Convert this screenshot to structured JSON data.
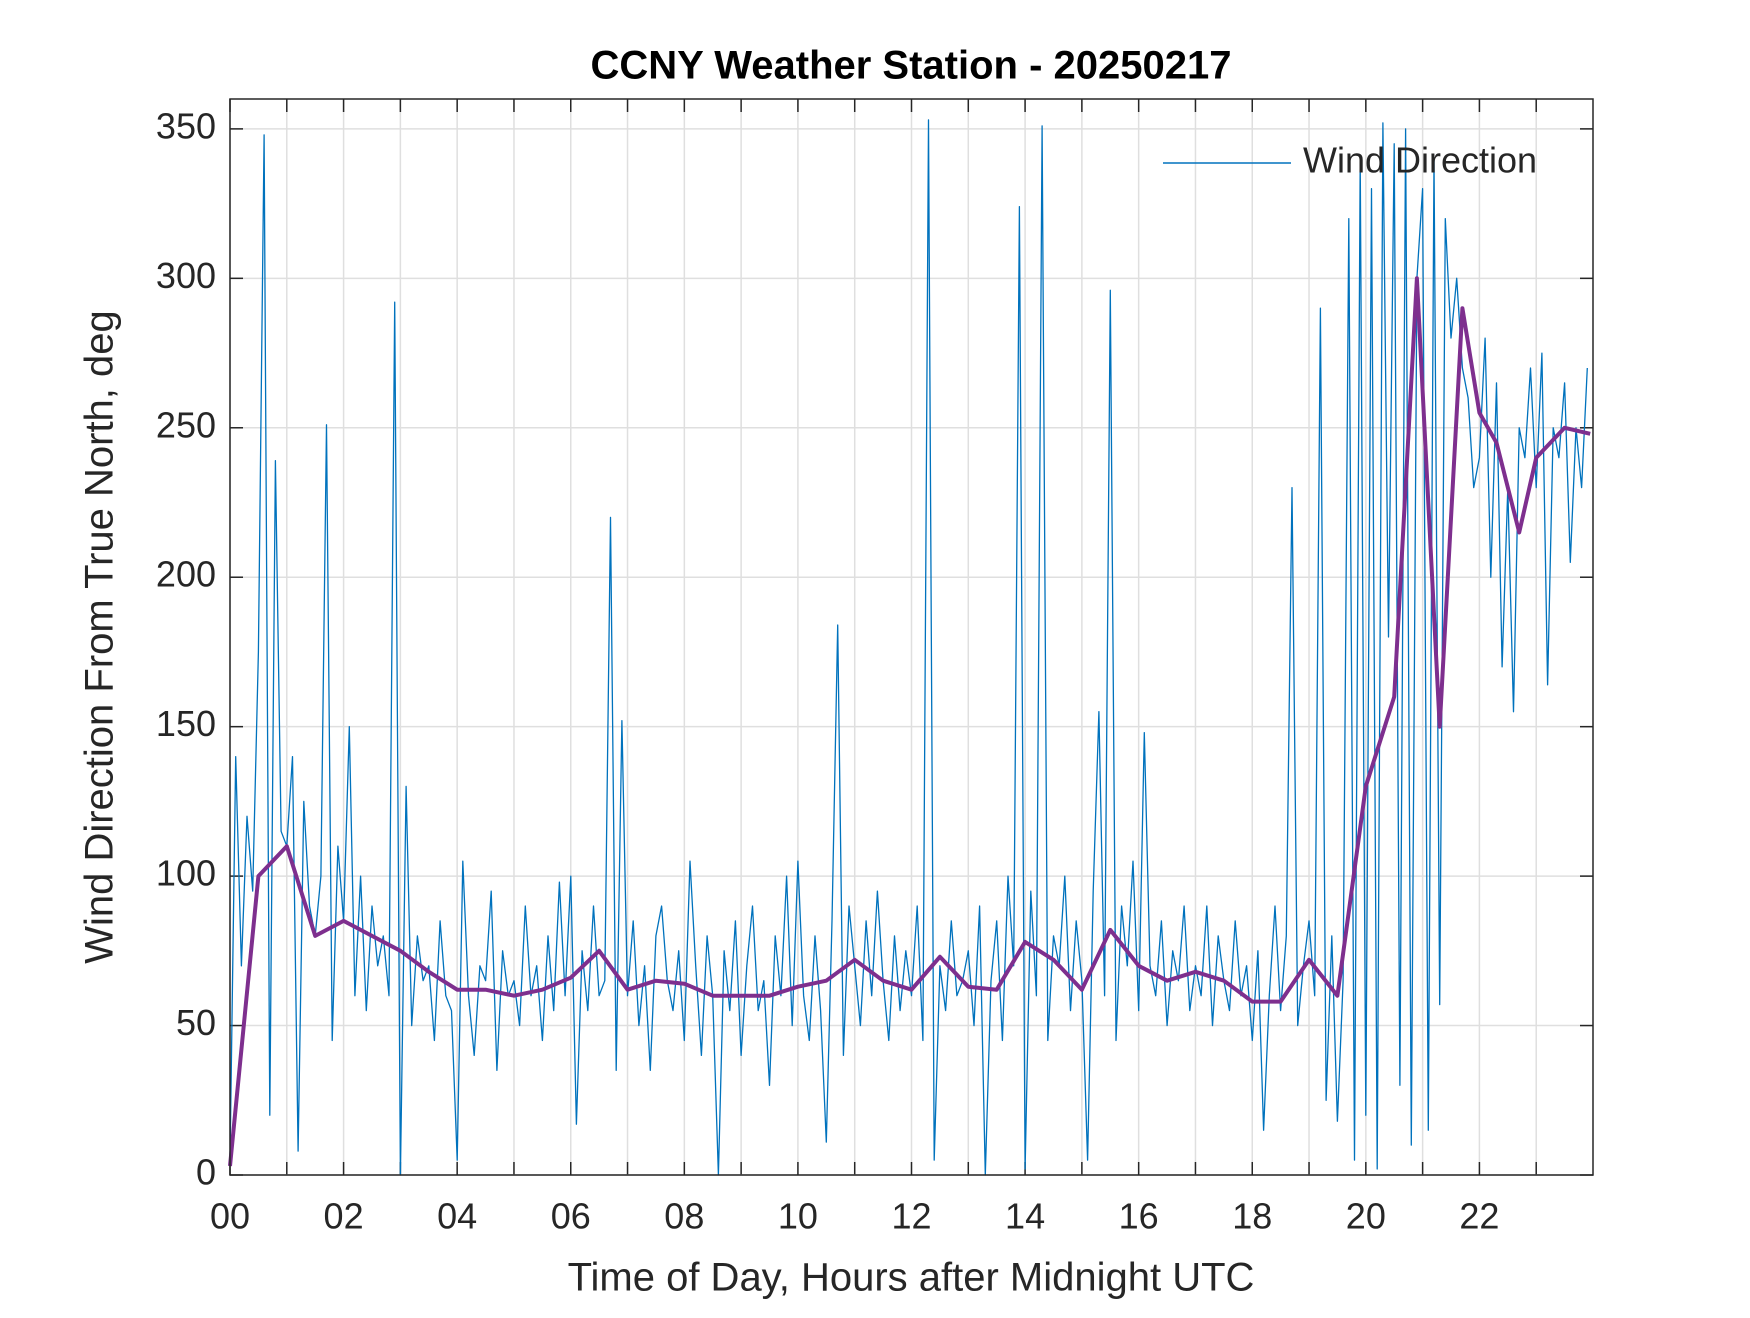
{
  "chart_data": {
    "type": "line",
    "title": "CCNY Weather Station - 20250217",
    "x_label": "Time of Day, Hours after Midnight UTC",
    "y_label": "Wind Direction From True North, deg",
    "xlim": [
      0,
      24
    ],
    "ylim": [
      0,
      360
    ],
    "xticks": [
      {
        "value": 0,
        "label": "00"
      },
      {
        "value": 2,
        "label": "02"
      },
      {
        "value": 4,
        "label": "04"
      },
      {
        "value": 6,
        "label": "06"
      },
      {
        "value": 8,
        "label": "08"
      },
      {
        "value": 10,
        "label": "10"
      },
      {
        "value": 12,
        "label": "12"
      },
      {
        "value": 14,
        "label": "14"
      },
      {
        "value": 16,
        "label": "16"
      },
      {
        "value": 18,
        "label": "18"
      },
      {
        "value": 20,
        "label": "20"
      },
      {
        "value": 22,
        "label": "22"
      }
    ],
    "xminorticks": [
      1,
      3,
      5,
      7,
      9,
      11,
      13,
      15,
      17,
      19,
      21,
      23
    ],
    "yticks": [
      0,
      50,
      100,
      150,
      200,
      250,
      300,
      350
    ],
    "grid": true,
    "legend": "upper right",
    "series": [
      {
        "name": "Wind Direction",
        "color": "#0072BD",
        "width": 1.3,
        "x": [
          0,
          0.1,
          0.2,
          0.3,
          0.4,
          0.5,
          0.6,
          0.7,
          0.8,
          0.9,
          1,
          1.1,
          1.2,
          1.3,
          1.4,
          1.5,
          1.6,
          1.7,
          1.8,
          1.9,
          2,
          2.1,
          2.2,
          2.3,
          2.4,
          2.5,
          2.6,
          2.7,
          2.8,
          2.9,
          3,
          3.1,
          3.2,
          3.3,
          3.4,
          3.5,
          3.6,
          3.7,
          3.8,
          3.9,
          4,
          4.1,
          4.2,
          4.3,
          4.4,
          4.5,
          4.6,
          4.7,
          4.8,
          4.9,
          5,
          5.1,
          5.2,
          5.3,
          5.4,
          5.5,
          5.6,
          5.7,
          5.8,
          5.9,
          6,
          6.1,
          6.2,
          6.3,
          6.4,
          6.5,
          6.6,
          6.7,
          6.8,
          6.9,
          7,
          7.1,
          7.2,
          7.3,
          7.4,
          7.5,
          7.6,
          7.7,
          7.8,
          7.9,
          8,
          8.1,
          8.2,
          8.3,
          8.4,
          8.5,
          8.6,
          8.7,
          8.8,
          8.9,
          9,
          9.1,
          9.2,
          9.3,
          9.4,
          9.5,
          9.6,
          9.7,
          9.8,
          9.9,
          10,
          10.1,
          10.2,
          10.3,
          10.4,
          10.5,
          10.6,
          10.7,
          10.8,
          10.9,
          11,
          11.1,
          11.2,
          11.3,
          11.4,
          11.5,
          11.6,
          11.7,
          11.8,
          11.9,
          12,
          12.1,
          12.2,
          12.3,
          12.4,
          12.5,
          12.6,
          12.7,
          12.8,
          12.9,
          13,
          13.1,
          13.2,
          13.3,
          13.4,
          13.5,
          13.6,
          13.7,
          13.8,
          13.9,
          14,
          14.1,
          14.2,
          14.3,
          14.4,
          14.5,
          14.6,
          14.7,
          14.8,
          14.9,
          15,
          15.1,
          15.2,
          15.3,
          15.4,
          15.5,
          15.6,
          15.7,
          15.8,
          15.9,
          16,
          16.1,
          16.2,
          16.3,
          16.4,
          16.5,
          16.6,
          16.7,
          16.8,
          16.9,
          17,
          17.1,
          17.2,
          17.3,
          17.4,
          17.5,
          17.6,
          17.7,
          17.8,
          17.9,
          18,
          18.1,
          18.2,
          18.3,
          18.4,
          18.5,
          18.6,
          18.7,
          18.8,
          18.9,
          19,
          19.1,
          19.2,
          19.3,
          19.4,
          19.5,
          19.6,
          19.7,
          19.8,
          19.9,
          20,
          20.1,
          20.2,
          20.3,
          20.4,
          20.5,
          20.6,
          20.7,
          20.8,
          20.9,
          21,
          21.1,
          21.2,
          21.3,
          21.4,
          21.5,
          21.6,
          21.7,
          21.8,
          21.9,
          22,
          22.1,
          22.2,
          22.3,
          22.4,
          22.5,
          22.6,
          22.7,
          22.8,
          22.9,
          23,
          23.1,
          23.2,
          23.3,
          23.4,
          23.5,
          23.6,
          23.7,
          23.8,
          23.9
        ],
        "values": [
          5,
          140,
          70,
          120,
          95,
          175,
          348,
          20,
          239,
          115,
          110,
          140,
          8,
          125,
          90,
          80,
          100,
          251,
          45,
          110,
          85,
          150,
          60,
          100,
          55,
          90,
          70,
          80,
          60,
          292,
          0,
          130,
          50,
          80,
          65,
          70,
          45,
          85,
          60,
          55,
          5,
          105,
          60,
          40,
          70,
          65,
          95,
          35,
          75,
          60,
          65,
          50,
          90,
          60,
          70,
          45,
          80,
          55,
          98,
          60,
          100,
          17,
          75,
          55,
          90,
          60,
          65,
          220,
          35,
          152,
          60,
          85,
          50,
          70,
          35,
          80,
          90,
          65,
          55,
          75,
          45,
          105,
          70,
          40,
          80,
          60,
          0,
          75,
          55,
          85,
          40,
          70,
          90,
          55,
          65,
          30,
          80,
          60,
          100,
          50,
          105,
          60,
          45,
          80,
          55,
          11,
          85,
          184,
          40,
          90,
          70,
          50,
          85,
          60,
          95,
          65,
          45,
          80,
          55,
          75,
          60,
          90,
          45,
          353,
          5,
          70,
          55,
          85,
          60,
          65,
          75,
          50,
          90,
          0,
          65,
          85,
          45,
          100,
          70,
          324,
          2,
          95,
          60,
          351,
          45,
          80,
          70,
          100,
          55,
          85,
          65,
          5,
          95,
          155,
          60,
          296,
          45,
          90,
          70,
          105,
          55,
          148,
          70,
          60,
          85,
          50,
          75,
          65,
          90,
          55,
          70,
          60,
          90,
          50,
          80,
          65,
          55,
          85,
          60,
          70,
          45,
          75,
          15,
          60,
          90,
          55,
          80,
          230,
          50,
          70,
          85,
          60,
          290,
          25,
          80,
          18,
          65,
          320,
          5,
          340,
          20,
          330,
          2,
          352,
          180,
          345,
          30,
          350,
          10,
          300,
          330,
          15,
          340,
          57,
          320,
          280,
          300,
          270,
          260,
          230,
          240,
          280,
          200,
          265,
          170,
          230,
          155,
          250,
          240,
          270,
          230,
          275,
          164,
          250,
          240,
          265,
          205,
          250,
          230,
          270
        ]
      },
      {
        "color": "#7E2F8E",
        "width": 4,
        "x": [
          0,
          0.5,
          1,
          1.5,
          2,
          2.5,
          3,
          3.5,
          4,
          4.5,
          5,
          5.5,
          6,
          6.5,
          7,
          7.5,
          8,
          8.5,
          9,
          9.5,
          10,
          10.5,
          11,
          11.5,
          12,
          12.5,
          13,
          13.5,
          14,
          14.5,
          15,
          15.5,
          16,
          16.5,
          17,
          17.5,
          18,
          18.5,
          19,
          19.5,
          20,
          20.5,
          20.9,
          21.3,
          21.7,
          22,
          22.3,
          22.7,
          23,
          23.5,
          23.95
        ],
        "values": [
          3,
          100,
          110,
          80,
          85,
          80,
          75,
          68,
          62,
          62,
          60,
          62,
          66,
          75,
          62,
          65,
          64,
          60,
          60,
          60,
          63,
          65,
          72,
          65,
          62,
          73,
          63,
          62,
          78,
          72,
          62,
          82,
          70,
          65,
          68,
          65,
          58,
          58,
          72,
          60,
          130,
          160,
          300,
          150,
          290,
          255,
          245,
          215,
          240,
          250,
          248
        ]
      }
    ]
  }
}
